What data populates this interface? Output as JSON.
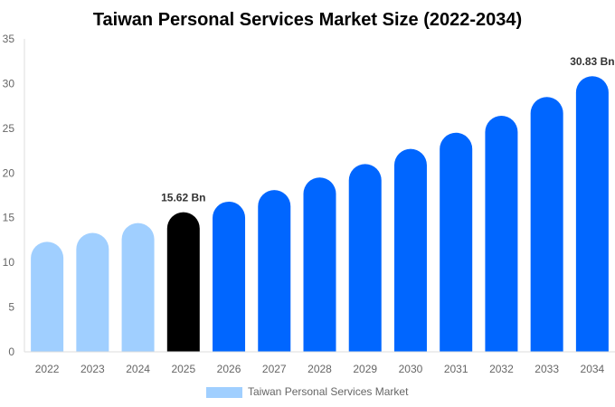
{
  "chart_data": {
    "type": "bar",
    "title": "Taiwan Personal Services Market Size (2022-2034)",
    "xlabel": "",
    "ylabel": "",
    "ylim": [
      0,
      35
    ],
    "yticks": [
      0,
      5,
      10,
      15,
      20,
      25,
      30,
      35
    ],
    "grid": false,
    "legend_placement": "bottom",
    "categories": [
      "2022",
      "2023",
      "2024",
      "2025",
      "2026",
      "2027",
      "2028",
      "2029",
      "2030",
      "2031",
      "2032",
      "2033",
      "2034"
    ],
    "series": [
      {
        "name": "Taiwan Personal Services Market",
        "values": [
          12.3,
          13.3,
          14.4,
          15.62,
          16.8,
          18.1,
          19.5,
          21.0,
          22.7,
          24.5,
          26.4,
          28.5,
          30.83
        ]
      }
    ],
    "data_labels": [
      {
        "category": "2025",
        "text": "15.62 Bn"
      },
      {
        "category": "2034",
        "text": "30.83 Bn"
      }
    ],
    "colors": {
      "historical": "#a0cfff",
      "base_year": "#000000",
      "forecast": "#0066ff",
      "axis": "#dddddd"
    }
  }
}
